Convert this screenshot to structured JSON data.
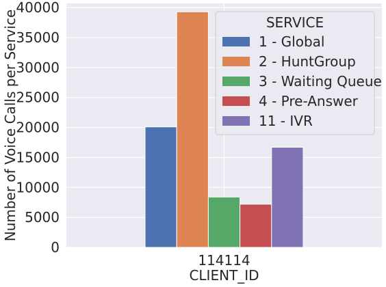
{
  "chart_data": {
    "type": "bar",
    "categories": [
      "114114"
    ],
    "xlabel": "CLIENT_ID",
    "ylabel": "Number of Voice Calls per Service",
    "ylim": [
      0,
      40000
    ],
    "yticks": [
      0,
      5000,
      10000,
      15000,
      20000,
      25000,
      30000,
      35000,
      40000
    ],
    "grid": true,
    "legend": {
      "title": "SERVICE",
      "placement": "top-right"
    },
    "series": [
      {
        "name": "1 - Global",
        "values": [
          20100
        ],
        "color": "#4c72b0"
      },
      {
        "name": "2 - HuntGroup",
        "values": [
          39300
        ],
        "color": "#dd8452"
      },
      {
        "name": "3 - Waiting Queue",
        "values": [
          8400
        ],
        "color": "#55a868"
      },
      {
        "name": "4 - Pre-Answer",
        "values": [
          7200
        ],
        "color": "#c44e52"
      },
      {
        "name": "11 - IVR",
        "values": [
          16700
        ],
        "color": "#8172b3"
      }
    ]
  }
}
